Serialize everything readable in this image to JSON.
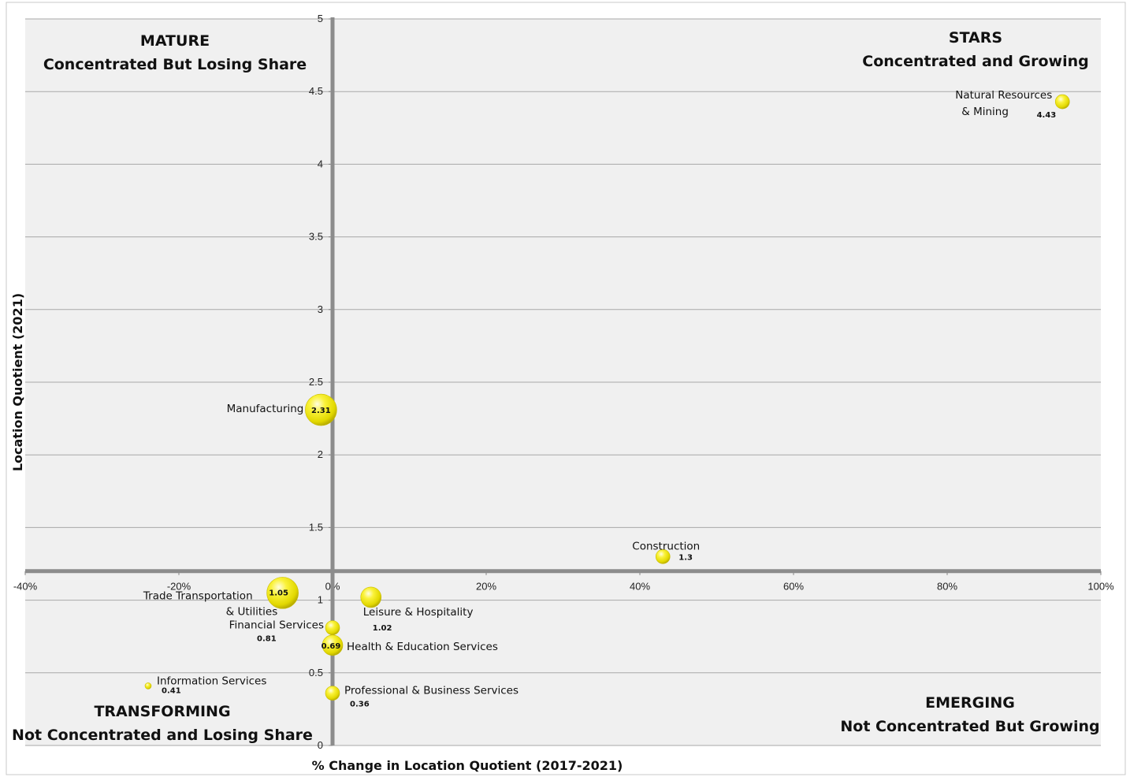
{
  "chart_data": {
    "type": "scatter",
    "xlabel": "% Change in Location Quotient (2017-2021)",
    "ylabel": "Location Quotient (2021)",
    "xlim": [
      -40,
      100
    ],
    "ylim": [
      0,
      5
    ],
    "x_ticks": [
      "-40%",
      "-20%",
      "0%",
      "20%",
      "40%",
      "60%",
      "80%",
      "100%"
    ],
    "y_ticks": [
      "0",
      "0.5",
      "1",
      "1.5",
      "2",
      "2.5",
      "3",
      "3.5",
      "4",
      "4.5",
      "5"
    ],
    "x_axis_crosses_y": 1.2,
    "grid": "horizontal",
    "quadrants": {
      "top_left": {
        "title": "MATURE",
        "subtitle": "Concentrated But Losing Share"
      },
      "top_right": {
        "title": "STARS",
        "subtitle": "Concentrated and Growing"
      },
      "bottom_left": {
        "title": "TRANSFORMING",
        "subtitle": "Not Concentrated and Losing Share"
      },
      "bottom_right": {
        "title": "EMERGING",
        "subtitle": "Not Concentrated But Growing"
      }
    },
    "points": [
      {
        "label": "Natural Resources",
        "label2": "& Mining",
        "x": 95,
        "y": 4.43,
        "value_label": "4.43",
        "size": "small"
      },
      {
        "label": "Manufacturing",
        "x": -1.5,
        "y": 2.31,
        "value_label": "2.31",
        "size": "large"
      },
      {
        "label": "Construction",
        "x": 43,
        "y": 1.3,
        "value_label": "1.3",
        "size": "small"
      },
      {
        "label": "Trade Transportation",
        "label2": "& Utilities",
        "x": -6.5,
        "y": 1.05,
        "value_label": "1.05",
        "size": "large"
      },
      {
        "label": "Leisure & Hospitality",
        "x": 5,
        "y": 1.02,
        "value_label": "1.02",
        "size": "medium"
      },
      {
        "label": "Financial Services",
        "x": 0,
        "y": 0.81,
        "value_label": "0.81",
        "size": "small"
      },
      {
        "label": "Health & Education Services",
        "x": 0,
        "y": 0.69,
        "value_label": "0.69",
        "size": "medium"
      },
      {
        "label": "Information Services",
        "x": -24,
        "y": 0.41,
        "value_label": "0.41",
        "size": "tiny"
      },
      {
        "label": "Professional & Business Services",
        "x": 0,
        "y": 0.36,
        "value_label": "0.36",
        "size": "small"
      }
    ],
    "bubble_color": "#f2ea00"
  }
}
